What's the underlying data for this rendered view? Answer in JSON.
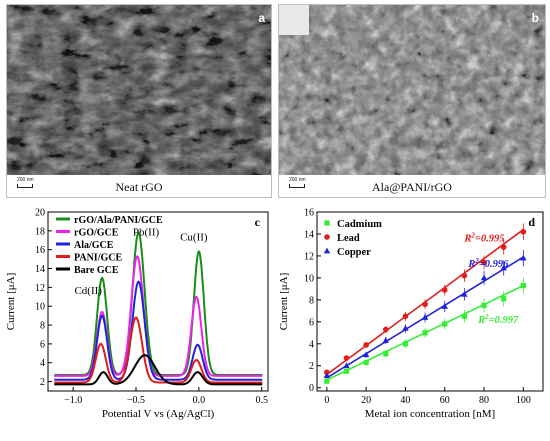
{
  "panel_a": {
    "letter": "a",
    "caption": "Neat rGO",
    "scale": "200 nm"
  },
  "panel_b": {
    "letter": "b",
    "caption": "Ala@PANI/rGO",
    "scale": "200 nm"
  },
  "colors": {
    "green": "#1a8c1a",
    "magenta": "#ee22ee",
    "blue": "#2222dd",
    "red": "#e21b1b",
    "black": "#000000",
    "lightgreen": "#33ee33"
  },
  "chart_data": [
    {
      "type": "line",
      "letter": "c",
      "xlabel": "Potential V vs (Ag/AgCl)",
      "ylabel": "Current [μA]",
      "xlim": [
        -1.2,
        0.55
      ],
      "ylim": [
        1,
        20
      ],
      "xticks": [
        -1.0,
        -0.5,
        0.0,
        0.5
      ],
      "xtick_labels": [
        "−1.0",
        "−0.5",
        "0.0",
        "0.5"
      ],
      "yticks": [
        2,
        4,
        6,
        8,
        10,
        12,
        14,
        16,
        18,
        20
      ],
      "peak_labels": [
        {
          "text": "Cd(II)",
          "x": -0.88,
          "y": 11.3
        },
        {
          "text": "Pb(II)",
          "x": -0.42,
          "y": 17.5
        },
        {
          "text": "Cu(II)",
          "x": -0.04,
          "y": 17.0
        }
      ],
      "legend_position": "top-left",
      "series": [
        {
          "name": "rGO/Ala/PANI/GCE",
          "color": "#1a8c1a",
          "baseline": 2.7,
          "peaks": [
            [
              -0.77,
              13.0,
              0.04
            ],
            [
              -0.48,
              17.8,
              0.048
            ],
            [
              0.0,
              15.8,
              0.04
            ]
          ]
        },
        {
          "name": "rGO/GCE",
          "color": "#ee22ee",
          "baseline": 2.6,
          "peaks": [
            [
              -0.77,
              9.4,
              0.04
            ],
            [
              -0.49,
              15.3,
              0.048
            ],
            [
              -0.02,
              11.0,
              0.04
            ]
          ]
        },
        {
          "name": "Ala/GCE",
          "color": "#2222dd",
          "baseline": 2.2,
          "peaks": [
            [
              -0.77,
              9.0,
              0.04
            ],
            [
              -0.48,
              12.6,
              0.048
            ],
            [
              -0.01,
              5.9,
              0.04
            ]
          ]
        },
        {
          "name": "PANI/GCE",
          "color": "#e21b1b",
          "baseline": 1.9,
          "peaks": [
            [
              -0.78,
              6.0,
              0.04
            ],
            [
              -0.5,
              8.8,
              0.048
            ],
            [
              -0.02,
              4.3,
              0.04
            ]
          ]
        },
        {
          "name": "Bare GCE",
          "color": "#000000",
          "baseline": 1.7,
          "peaks": [
            [
              -0.76,
              3.0,
              0.035
            ],
            [
              -0.43,
              4.8,
              0.08
            ],
            [
              -0.01,
              3.0,
              0.04
            ]
          ]
        }
      ]
    },
    {
      "type": "scatter",
      "letter": "d",
      "xlabel": "Metal ion concentration [nM]",
      "ylabel": "Current [μA]",
      "xlim": [
        -5,
        110
      ],
      "ylim": [
        -0.3,
        16
      ],
      "xticks": [
        0,
        20,
        40,
        60,
        80,
        100
      ],
      "yticks": [
        0,
        2,
        4,
        6,
        8,
        10,
        12,
        14,
        16
      ],
      "legend_position": "top-left",
      "x": [
        0,
        10,
        20,
        30,
        40,
        50,
        60,
        70,
        80,
        90,
        100
      ],
      "series": [
        {
          "name": "Cadmium",
          "color": "#33ee33",
          "marker": "square",
          "r2": "0.997",
          "fit": [
            0.7,
            0.086
          ],
          "values": [
            0.6,
            1.5,
            2.3,
            3.1,
            4.0,
            5.0,
            5.8,
            6.5,
            7.5,
            8.1,
            9.3
          ]
        },
        {
          "name": "Lead",
          "color": "#e21b1b",
          "marker": "circle",
          "r2": "0.995",
          "fit": [
            1.2,
            0.132
          ],
          "values": [
            1.4,
            2.7,
            3.9,
            5.3,
            6.5,
            7.6,
            8.9,
            10.2,
            11.4,
            12.8,
            14.2
          ]
        },
        {
          "name": "Copper",
          "color": "#2222dd",
          "marker": "triangle",
          "r2": "0.996",
          "fit": [
            0.9,
            0.11
          ],
          "values": [
            1.1,
            2.0,
            3.0,
            4.3,
            5.4,
            6.4,
            7.4,
            8.5,
            10.0,
            10.9,
            11.8
          ]
        }
      ]
    }
  ]
}
